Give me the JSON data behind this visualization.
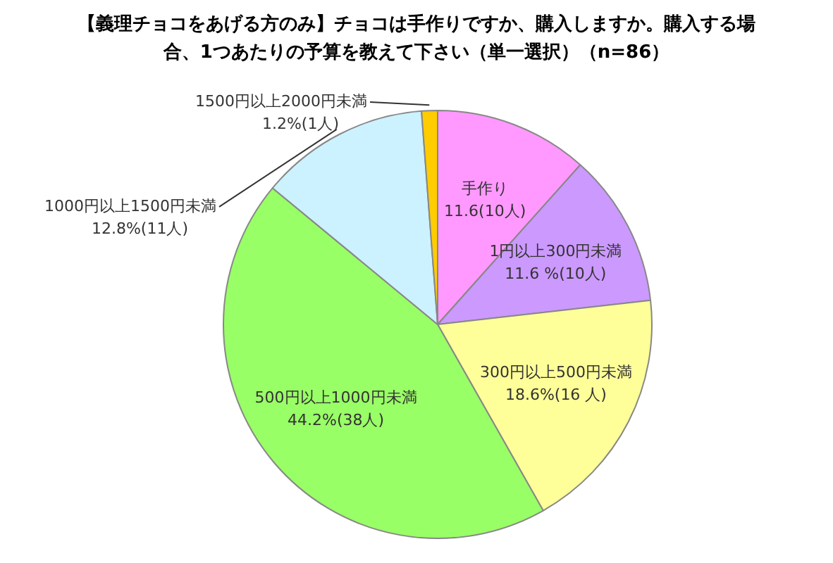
{
  "chart_data": {
    "type": "pie",
    "title": "【義理チョコをあげる方のみ】チョコは手作りですか、購入しますか。購入する場合、1つあたりの予算を教えて下さい（単一選択）（n=86）",
    "categories": [
      "手作り",
      "1円以上300円未満",
      "300円以上500円未満",
      "500円以上1000円未満",
      "1000円以上1500円未満",
      "1500円以上2000円未満"
    ],
    "values": [
      11.6,
      11.6,
      18.6,
      44.2,
      12.8,
      1.2
    ],
    "colors": [
      "#ff99ff",
      "#cc99ff",
      "#ffff99",
      "#99ff66",
      "#ccf2ff",
      "#ffcc00"
    ],
    "value_labels": [
      "11.6(10人)",
      "11.6 %(10人)",
      "18.6%(16 人)",
      "44.2%(38人)",
      "12.8%(11人)",
      "1.2%(1人)"
    ],
    "legend": false
  }
}
